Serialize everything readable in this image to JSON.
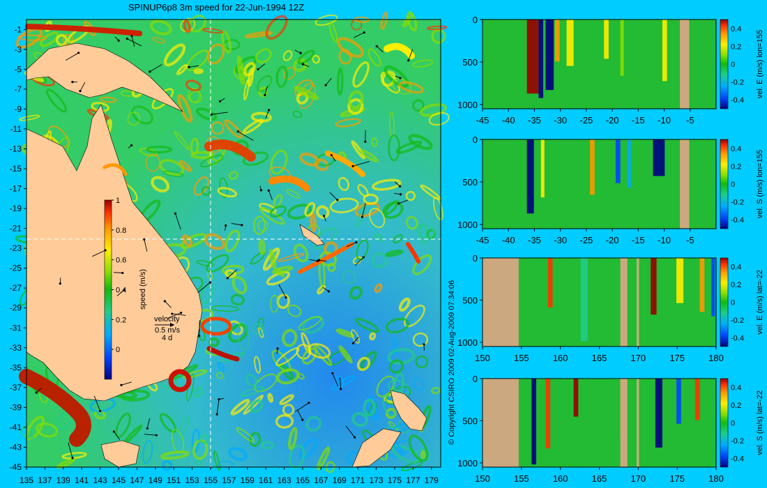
{
  "title": "SPINUP6p8 3m speed for 22-Jun-1994 12Z",
  "copyright": "© Copyright CSIRO 2009   02-Aug-2009 07:34:06",
  "colors": {
    "background": "#00ccff",
    "land": "#ffcc99",
    "mask": "#cca880",
    "colormap": [
      "#000080",
      "#0044ff",
      "#00aaff",
      "#22cc88",
      "#11bb11",
      "#88dd00",
      "#ffee00",
      "#ff9900",
      "#ff3300",
      "#990000"
    ]
  },
  "map": {
    "x_ticks": [
      "135",
      "137",
      "139",
      "141",
      "143",
      "145",
      "147",
      "149",
      "151",
      "153",
      "155",
      "157",
      "159",
      "161",
      "163",
      "165",
      "167",
      "169",
      "171",
      "173",
      "175",
      "177",
      "179"
    ],
    "y_ticks": [
      "-1",
      "-3",
      "-5",
      "-7",
      "-9",
      "-11",
      "-13",
      "-15",
      "-17",
      "-19",
      "-21",
      "-23",
      "-25",
      "-27",
      "-29",
      "-31",
      "-33",
      "-35",
      "-37",
      "-39",
      "-41",
      "-43",
      "-45"
    ],
    "lon_range": [
      135,
      180
    ],
    "lat_range": [
      -45,
      0
    ],
    "crosshair": {
      "lon": 155,
      "lat": -22
    },
    "colorbar": {
      "label": "speed (m/s)",
      "ticks": [
        "1",
        "0.8",
        "0.6",
        "0.4",
        "0.2",
        "0"
      ],
      "range": [
        -0.2,
        1
      ]
    },
    "velocity_key": {
      "label": "velocity",
      "speed": "0.5 m/s",
      "time": "4 d"
    }
  },
  "chart_data": [
    {
      "type": "heatmap",
      "title": "SPINUP6p8 3m speed for 22-Jun-1994 12Z",
      "variable": "speed (m/s)",
      "x_range": [
        135,
        180
      ],
      "y_range": [
        -45,
        0
      ],
      "color_range": [
        -0.2,
        1
      ]
    },
    {
      "type": "heatmap",
      "variable": "vel. E (m/s) lon=155",
      "x_ticks": [
        "-45",
        "-40",
        "-35",
        "-30",
        "-25",
        "-20",
        "-15",
        "-10",
        "-5"
      ],
      "y_ticks": [
        "0",
        "500",
        "1000"
      ],
      "color_ticks": [
        "0.4",
        "0.2",
        "0",
        "-0.2",
        "-0.4"
      ],
      "x_range": [
        -45,
        0
      ],
      "y_range": [
        0,
        1050
      ]
    },
    {
      "type": "heatmap",
      "variable": "vel. S (m/s) lon=155",
      "x_ticks": [
        "-45",
        "-40",
        "-35",
        "-30",
        "-25",
        "-20",
        "-15",
        "-10",
        "-5"
      ],
      "y_ticks": [
        "0",
        "500",
        "1000"
      ],
      "color_ticks": [
        "0.4",
        "0.2",
        "0",
        "-0.2",
        "-0.4"
      ],
      "x_range": [
        -45,
        0
      ],
      "y_range": [
        0,
        1050
      ]
    },
    {
      "type": "heatmap",
      "variable": "vel. E (m/s) lat=-22",
      "x_ticks": [
        "150",
        "155",
        "160",
        "165",
        "170",
        "175",
        "180"
      ],
      "y_ticks": [
        "0",
        "500",
        "1000"
      ],
      "color_ticks": [
        "0.4",
        "0.2",
        "0",
        "-0.2",
        "-0.4"
      ],
      "x_range": [
        150,
        180
      ],
      "y_range": [
        0,
        1050
      ]
    },
    {
      "type": "heatmap",
      "variable": "vel. S (m/s) lat=-22",
      "x_ticks": [
        "150",
        "155",
        "160",
        "165",
        "170",
        "175",
        "180"
      ],
      "y_ticks": [
        "0",
        "500",
        "1000"
      ],
      "color_ticks": [
        "0.4",
        "0.2",
        "0",
        "-0.2",
        "-0.4"
      ],
      "x_range": [
        150,
        180
      ],
      "y_range": [
        0,
        1050
      ]
    }
  ]
}
